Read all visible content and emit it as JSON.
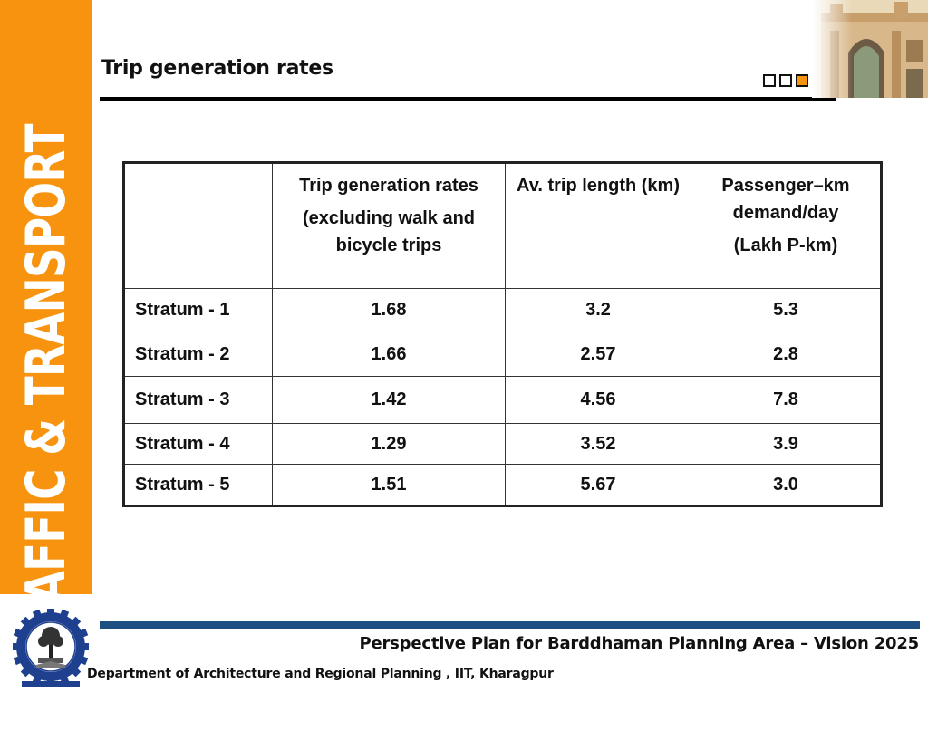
{
  "sidebar": {
    "label": "TRAFFIC & TRANSPORT",
    "color": "#f7930e"
  },
  "slide": {
    "title": "Trip generation rates",
    "nav_squares": 3,
    "active_square": 3
  },
  "table": {
    "headers": [
      [],
      [
        "Trip generation rates",
        "(excluding walk and bicycle trips"
      ],
      [
        "Av. trip length (km)"
      ],
      [
        "Passenger–km demand/day",
        "(Lakh P-km)"
      ]
    ],
    "rows": [
      [
        "Stratum - 1",
        "1.68",
        "3.2",
        "5.3"
      ],
      [
        "Stratum - 2",
        "1.66",
        "2.57",
        "2.8"
      ],
      [
        "Stratum - 3",
        "1.42",
        "4.56",
        "7.8"
      ],
      [
        "Stratum - 4",
        "1.29",
        "3.52",
        "3.9"
      ],
      [
        "Stratum - 5",
        "1.51",
        "5.67",
        "3.0"
      ]
    ]
  },
  "footer": {
    "title": "Perspective Plan for Barddhaman Planning Area – Vision 2025",
    "department": "Department of Architecture and Regional Planning , IIT, Kharagpur",
    "rule_color": "#1e4f82"
  },
  "images": {
    "photo": "archway-gate-photo",
    "logo": "iit-kharagpur-logo"
  }
}
